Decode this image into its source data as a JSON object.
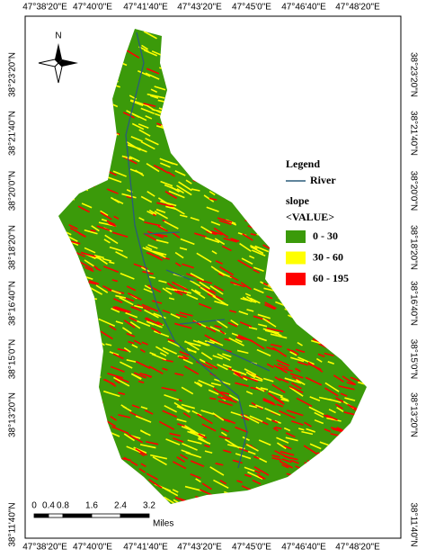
{
  "map": {
    "lon_labels": [
      "47°38'20\"E",
      "47°40'0\"E",
      "47°41'40\"E",
      "47°43'20\"E",
      "47°45'0\"E",
      "47°46'40\"E",
      "47°48'20\"E"
    ],
    "lat_labels": [
      "38°23'20\"N",
      "38°21'40\"N",
      "38°20'0\"N",
      "38°18'20\"N",
      "38°16'40\"N",
      "38°15'0\"N",
      "38°13'20\"N",
      "38°11'40\"N"
    ],
    "north": "N",
    "legend": {
      "title": "Legend",
      "river": "River",
      "field": "slope",
      "value_header": "<VALUE>",
      "classes": [
        {
          "label": "0 - 30",
          "color": "#3b9a0a"
        },
        {
          "label": "30 - 60",
          "color": "#ffff00"
        },
        {
          "label": "60 - 195",
          "color": "#ff0000"
        }
      ]
    },
    "scale": {
      "labels": [
        0,
        0.4,
        0.8,
        1.6,
        2.4,
        3.2
      ],
      "unit": "Miles"
    }
  }
}
